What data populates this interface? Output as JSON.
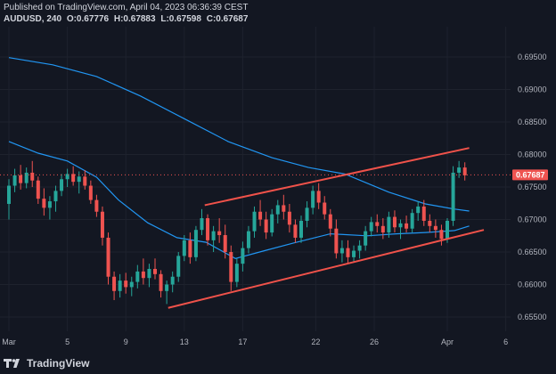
{
  "header": {
    "published": "Published on TradingView.com, April 04, 2023 06:36:39 CEST",
    "symbol": "AUDUSD, 240",
    "open": "O:0.67776",
    "high": "H:0.67883",
    "low": "L:0.67598",
    "close": "C:0.67687"
  },
  "footer": {
    "logo_icon": "tradingview-logo-icon",
    "brand": "TradingView"
  },
  "colors": {
    "background": "#131722",
    "grid": "#1e222d",
    "up": "#26a69a",
    "down": "#ef5350",
    "ma": "#2196f3",
    "channel": "#f0524a",
    "price_tag": "#ef5350"
  },
  "chart_data": {
    "type": "candlestick",
    "symbol": "AUDUSD",
    "timeframe": "240",
    "y_ticks": [
      "0.69500",
      "0.69000",
      "0.68500",
      "0.68000",
      "0.67500",
      "0.67000",
      "0.66500",
      "0.66000",
      "0.65500"
    ],
    "x_ticks": [
      "Mar",
      "5",
      "9",
      "13",
      "17",
      "22",
      "26",
      "Apr",
      "6"
    ],
    "last_price": "0.67687",
    "ylim": [
      0.6525,
      0.6985
    ],
    "channel": {
      "upper": [
        [
          13.4,
          0.6722
        ],
        [
          31.5,
          0.681
        ]
      ],
      "lower": [
        [
          10.9,
          0.6564
        ],
        [
          32.5,
          0.6684
        ]
      ]
    },
    "ma_long": [
      [
        0,
        0.6949
      ],
      [
        3,
        0.6938
      ],
      [
        6,
        0.692
      ],
      [
        9,
        0.689
      ],
      [
        12,
        0.6855
      ],
      [
        15,
        0.682
      ],
      [
        18,
        0.6795
      ],
      [
        20.5,
        0.678
      ],
      [
        23,
        0.677
      ],
      [
        26,
        0.6742
      ],
      [
        28.5,
        0.6724
      ],
      [
        30.5,
        0.6716
      ],
      [
        31.5,
        0.6713
      ]
    ],
    "ma_short": [
      [
        0,
        0.682
      ],
      [
        2,
        0.6802
      ],
      [
        4,
        0.679
      ],
      [
        6,
        0.6765
      ],
      [
        7.5,
        0.673
      ],
      [
        9.5,
        0.6695
      ],
      [
        11.5,
        0.6672
      ],
      [
        13.5,
        0.6665
      ],
      [
        15.5,
        0.664
      ],
      [
        17.5,
        0.6652
      ],
      [
        19.5,
        0.6664
      ],
      [
        22,
        0.6678
      ],
      [
        24.5,
        0.6675
      ],
      [
        26.5,
        0.6678
      ],
      [
        28.5,
        0.668
      ],
      [
        30.5,
        0.6683
      ],
      [
        31.5,
        0.669
      ]
    ],
    "candles": [
      [
        0.0,
        0.6724,
        0.6762,
        0.67,
        0.6752
      ],
      [
        0.4,
        0.6752,
        0.6778,
        0.6742,
        0.6768
      ],
      [
        0.8,
        0.6768,
        0.6784,
        0.6746,
        0.6756
      ],
      [
        1.2,
        0.6756,
        0.678,
        0.6748,
        0.6772
      ],
      [
        1.6,
        0.6772,
        0.679,
        0.675,
        0.676
      ],
      [
        2.0,
        0.676,
        0.6766,
        0.6724,
        0.6732
      ],
      [
        2.4,
        0.6732,
        0.6748,
        0.6706,
        0.6718
      ],
      [
        2.8,
        0.6718,
        0.6736,
        0.67,
        0.6728
      ],
      [
        3.2,
        0.6728,
        0.6752,
        0.6712,
        0.6744
      ],
      [
        3.6,
        0.6744,
        0.677,
        0.6736,
        0.6762
      ],
      [
        4.0,
        0.6762,
        0.6778,
        0.675,
        0.677
      ],
      [
        4.4,
        0.677,
        0.6782,
        0.6752,
        0.6758
      ],
      [
        4.8,
        0.6758,
        0.6774,
        0.674,
        0.6766
      ],
      [
        5.2,
        0.6766,
        0.6776,
        0.6746,
        0.6752
      ],
      [
        5.6,
        0.6752,
        0.676,
        0.6724,
        0.673
      ],
      [
        6.0,
        0.673,
        0.6738,
        0.6704,
        0.6712
      ],
      [
        6.4,
        0.6712,
        0.672,
        0.666,
        0.6672
      ],
      [
        6.8,
        0.6672,
        0.668,
        0.66,
        0.6612
      ],
      [
        7.2,
        0.6612,
        0.662,
        0.6576,
        0.659
      ],
      [
        7.6,
        0.659,
        0.6616,
        0.658,
        0.6606
      ],
      [
        8.0,
        0.6606,
        0.6618,
        0.6586,
        0.6596
      ],
      [
        8.4,
        0.6596,
        0.6612,
        0.6582,
        0.6604
      ],
      [
        8.8,
        0.6604,
        0.663,
        0.6594,
        0.662
      ],
      [
        9.2,
        0.662,
        0.664,
        0.66,
        0.661
      ],
      [
        9.6,
        0.661,
        0.6632,
        0.6596,
        0.6624
      ],
      [
        10.0,
        0.6624,
        0.664,
        0.6608,
        0.6616
      ],
      [
        10.4,
        0.6616,
        0.6622,
        0.658,
        0.659
      ],
      [
        10.8,
        0.659,
        0.6606,
        0.657,
        0.66
      ],
      [
        11.2,
        0.66,
        0.662,
        0.6588,
        0.6612
      ],
      [
        11.6,
        0.6612,
        0.665,
        0.6604,
        0.6644
      ],
      [
        12.0,
        0.6644,
        0.6676,
        0.6636,
        0.6668
      ],
      [
        12.4,
        0.6668,
        0.668,
        0.6632,
        0.6642
      ],
      [
        12.8,
        0.6642,
        0.669,
        0.6636,
        0.6684
      ],
      [
        13.2,
        0.6684,
        0.6716,
        0.6676,
        0.6702
      ],
      [
        13.6,
        0.6702,
        0.6708,
        0.666,
        0.6668
      ],
      [
        14.0,
        0.6668,
        0.669,
        0.665,
        0.6682
      ],
      [
        14.4,
        0.6682,
        0.6702,
        0.6664,
        0.6676
      ],
      [
        14.8,
        0.6676,
        0.6692,
        0.664,
        0.665
      ],
      [
        15.2,
        0.665,
        0.666,
        0.659,
        0.6604
      ],
      [
        15.6,
        0.6604,
        0.664,
        0.6596,
        0.6632
      ],
      [
        16.0,
        0.6632,
        0.6666,
        0.662,
        0.6656
      ],
      [
        16.4,
        0.6656,
        0.669,
        0.6648,
        0.6682
      ],
      [
        16.8,
        0.6682,
        0.672,
        0.6672,
        0.6712
      ],
      [
        17.2,
        0.6712,
        0.673,
        0.669,
        0.67
      ],
      [
        17.6,
        0.67,
        0.6712,
        0.667,
        0.668
      ],
      [
        18.0,
        0.668,
        0.6716,
        0.6674,
        0.6708
      ],
      [
        18.4,
        0.6708,
        0.673,
        0.6694,
        0.6722
      ],
      [
        18.8,
        0.6722,
        0.6738,
        0.67,
        0.6712
      ],
      [
        19.2,
        0.6712,
        0.6724,
        0.668,
        0.6692
      ],
      [
        19.6,
        0.6692,
        0.67,
        0.6664,
        0.6672
      ],
      [
        20.0,
        0.6672,
        0.6706,
        0.6664,
        0.6698
      ],
      [
        20.4,
        0.6698,
        0.6728,
        0.6688,
        0.6718
      ],
      [
        20.8,
        0.6718,
        0.6752,
        0.6708,
        0.6744
      ],
      [
        21.2,
        0.6744,
        0.6756,
        0.6716,
        0.6726
      ],
      [
        21.6,
        0.6726,
        0.6736,
        0.67,
        0.6708
      ],
      [
        22.0,
        0.6708,
        0.6716,
        0.6674,
        0.6686
      ],
      [
        22.4,
        0.6686,
        0.67,
        0.664,
        0.6648
      ],
      [
        22.8,
        0.6648,
        0.6668,
        0.6634,
        0.6656
      ],
      [
        23.2,
        0.6656,
        0.6668,
        0.6632,
        0.6642
      ],
      [
        23.6,
        0.6642,
        0.666,
        0.6634,
        0.6652
      ],
      [
        24.0,
        0.6652,
        0.6668,
        0.664,
        0.666
      ],
      [
        24.4,
        0.666,
        0.669,
        0.6652,
        0.6682
      ],
      [
        24.8,
        0.6682,
        0.6704,
        0.6674,
        0.6696
      ],
      [
        25.2,
        0.6696,
        0.6708,
        0.668,
        0.669
      ],
      [
        25.6,
        0.669,
        0.6702,
        0.667,
        0.668
      ],
      [
        26.0,
        0.668,
        0.6712,
        0.6672,
        0.6704
      ],
      [
        26.4,
        0.6704,
        0.6714,
        0.668,
        0.6688
      ],
      [
        26.8,
        0.6688,
        0.67,
        0.667,
        0.6694
      ],
      [
        27.2,
        0.6694,
        0.6706,
        0.668,
        0.6686
      ],
      [
        27.6,
        0.6686,
        0.6716,
        0.668,
        0.671
      ],
      [
        28.0,
        0.671,
        0.6728,
        0.6698,
        0.672
      ],
      [
        28.4,
        0.672,
        0.673,
        0.669,
        0.6698
      ],
      [
        28.8,
        0.6698,
        0.6708,
        0.668,
        0.669
      ],
      [
        29.2,
        0.669,
        0.67,
        0.6672,
        0.6684
      ],
      [
        29.6,
        0.6684,
        0.6692,
        0.666,
        0.667
      ],
      [
        30.0,
        0.667,
        0.6702,
        0.6664,
        0.6698
      ],
      [
        30.4,
        0.6698,
        0.6782,
        0.669,
        0.6772
      ],
      [
        30.8,
        0.6772,
        0.679,
        0.6764,
        0.678
      ],
      [
        31.2,
        0.678,
        0.6788,
        0.676,
        0.6768
      ]
    ]
  }
}
